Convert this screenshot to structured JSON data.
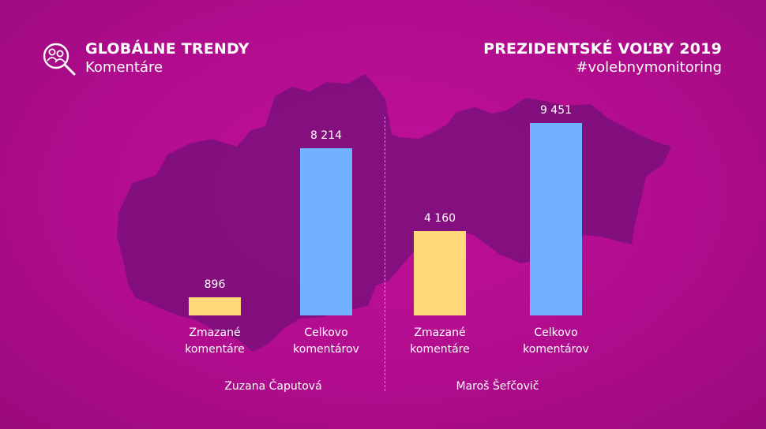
{
  "header": {
    "section_title": "GLOBÁLNE TRENDY",
    "section_subtitle": "Komentáre",
    "event_title": "PREZIDENTSKÉ VOĽBY 2019",
    "hashtag": "#volebnymonitoring",
    "logo_icon": "search-people-icon"
  },
  "colors": {
    "deleted": "#ffd97a",
    "total": "#72b1ff",
    "map": "#7a0f7a",
    "background": "#b10c8e"
  },
  "chart_data": {
    "type": "bar",
    "title": "",
    "xlabel": "",
    "ylabel": "",
    "ylim": [
      0,
      9451
    ],
    "groups": [
      {
        "name": "Zuzana Čaputová",
        "bars": [
          {
            "category": "Zmazané komentáre",
            "label_line1": "Zmazané",
            "label_line2": "komentáre",
            "value": 896,
            "value_label": "896",
            "kind": "deleted"
          },
          {
            "category": "Celkovo komentárov",
            "label_line1": "Celkovo",
            "label_line2": "komentárov",
            "value": 8214,
            "value_label": "8 214",
            "kind": "total"
          }
        ]
      },
      {
        "name": "Maroš Šefčovič",
        "bars": [
          {
            "category": "Zmazané komentáre",
            "label_line1": "Zmazané",
            "label_line2": "komentáre",
            "value": 4160,
            "value_label": "4 160",
            "kind": "deleted"
          },
          {
            "category": "Celkovo komentárov",
            "label_line1": "Celkovo",
            "label_line2": "komentárov",
            "value": 9451,
            "value_label": "9 451",
            "kind": "total"
          }
        ]
      }
    ]
  }
}
